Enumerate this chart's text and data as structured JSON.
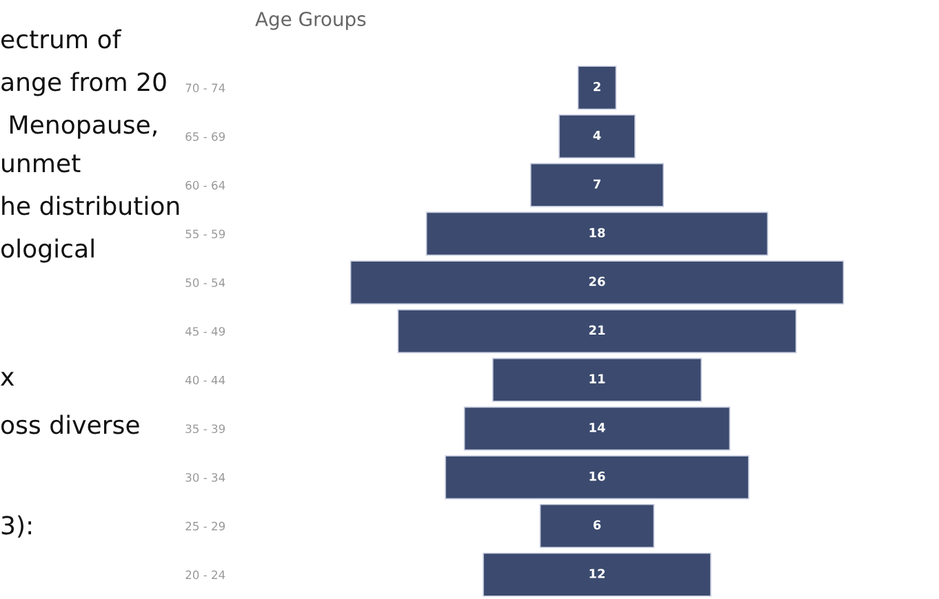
{
  "chart_data": {
    "type": "other",
    "title": "Age Groups",
    "categories": [
      "70 - 74",
      "65 - 69",
      "60 - 64",
      "55 - 59",
      "50 - 54",
      "45 - 49",
      "40 - 44",
      "35 - 39",
      "30 - 34",
      "25 - 29",
      "20 - 24"
    ],
    "values": [
      2,
      4,
      7,
      18,
      26,
      21,
      11,
      14,
      16,
      6,
      12
    ],
    "color": "#3b4a6e",
    "data_labels": true,
    "annotations": [
      "ectrum of",
      "ange from 20",
      " Menopause,",
      "unmet",
      "he distribution",
      "ological",
      "x",
      "oss diverse",
      "3):"
    ]
  }
}
